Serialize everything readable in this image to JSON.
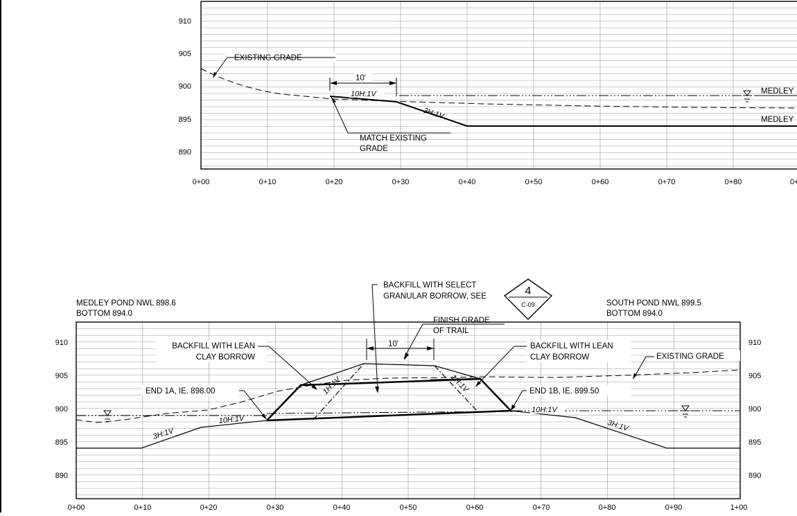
{
  "top_section": {
    "elevation_labels": [
      "910",
      "905",
      "900",
      "895",
      "890"
    ],
    "station_labels": [
      "0+00",
      "0+10",
      "0+20",
      "0+30",
      "0+40",
      "0+50",
      "0+60",
      "0+70",
      "0+80",
      "0+"
    ],
    "notes": {
      "existing_grade": "EXISTING GRADE",
      "dimension": "10'",
      "slope_10h": "10H:1V",
      "slope_3h": "3H:1V",
      "match_line1": "MATCH EXISTING",
      "match_line2": "GRADE",
      "medley_nwl": "MEDLEY",
      "medley_bottom": "MEDLEY"
    }
  },
  "bottom_section": {
    "elevation_labels": [
      "910",
      "905",
      "900",
      "895",
      "890"
    ],
    "station_labels": [
      "0+00",
      "0+10",
      "0+20",
      "0+30",
      "0+40",
      "0+50",
      "0+60",
      "0+70",
      "0+80",
      "0+90",
      "1+00"
    ],
    "header": {
      "left_line1": "MEDLEY POND NWL 898.6",
      "left_line2": "BOTTOM 894.0",
      "right_line1": "SOUTH POND NWL 899.5",
      "right_line2": "BOTTOM 894.0"
    },
    "callout": {
      "backfill_select_line1": "BACKFILL WITH SELECT",
      "backfill_select_line2": "GRANULAR BORROW, SEE",
      "detail_number": "4",
      "detail_sheet": "C-09",
      "finish_grade_line1": "FINISH GRADE",
      "finish_grade_line2": "OF TRAIL",
      "dimension": "10'",
      "backfill_lean_left_line1": "BACKFILL WITH LEAN",
      "backfill_lean_left_line2": "CLAY BORROW",
      "backfill_lean_right_line1": "BACKFILL WITH LEAN",
      "backfill_lean_right_line2": "CLAY BORROW",
      "existing_grade": "EXISTING GRADE",
      "end_1a": "END 1A, IE. 898.00",
      "end_1b": "END 1B,  IE. 899.50",
      "slope_1h_left": "1H:1V",
      "slope_1h_right": "1H:1V",
      "slope_10h_left": "10H:1V",
      "slope_10h_right": "10H:1V",
      "slope_3h_left": "3H:1V",
      "slope_3h_right": "3H:1V"
    }
  },
  "colors": {
    "line": "#000000",
    "grid": "#9a9a9a",
    "background": "#ffffff"
  }
}
